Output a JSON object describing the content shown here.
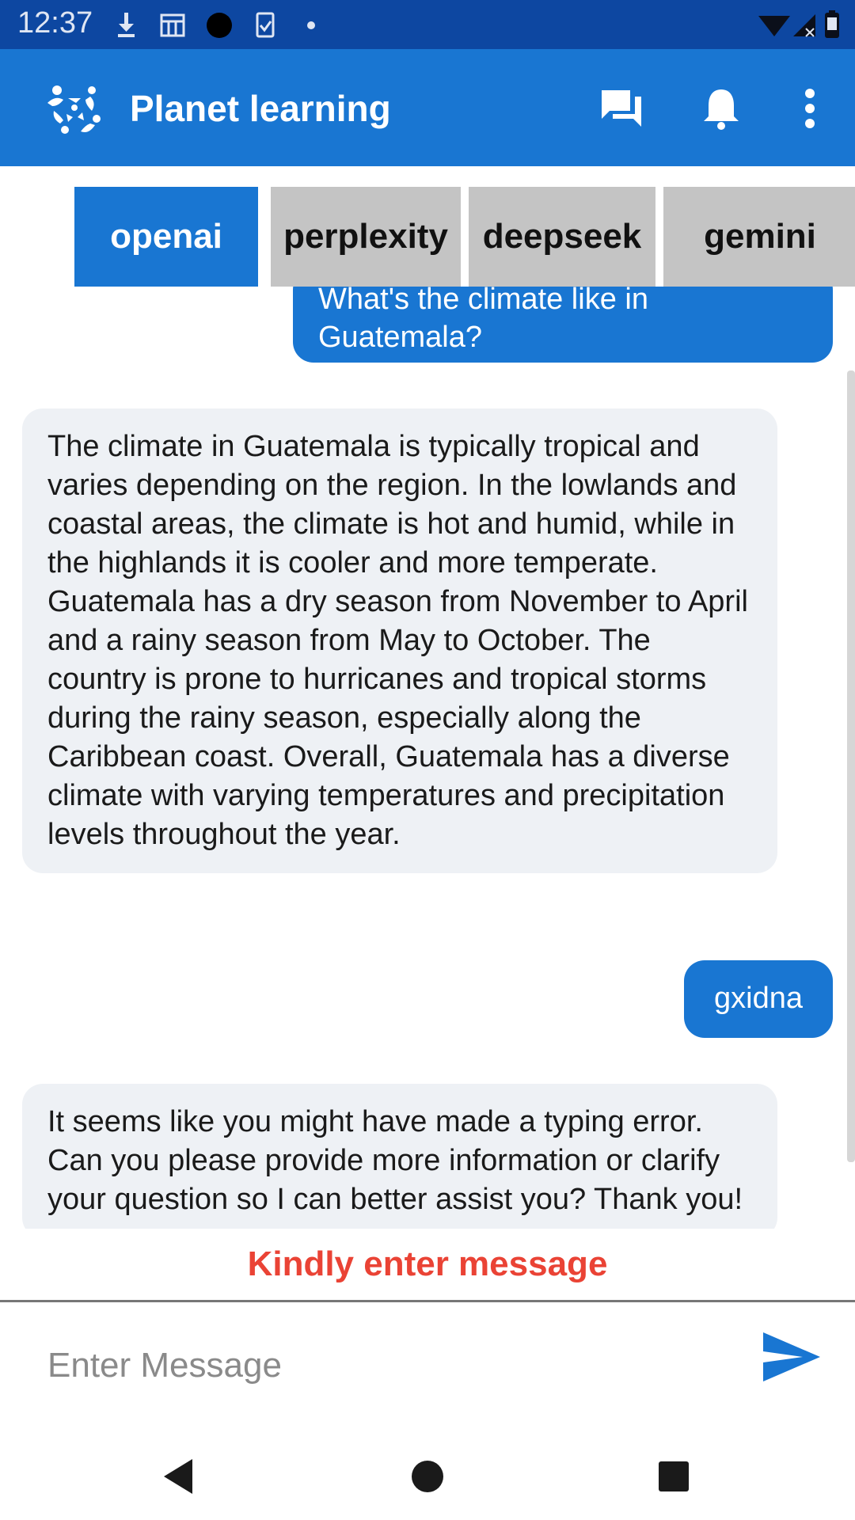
{
  "status_bar": {
    "time": "12:37",
    "left_icons": [
      "download-icon",
      "calendar-icon",
      "circle-icon",
      "clipboard-check-icon",
      "dot-icon"
    ],
    "right_icons": [
      "wifi-icon",
      "signal-icon",
      "battery-icon"
    ]
  },
  "app_bar": {
    "title": "Planet learning",
    "logo_icon": "people-circle-logo",
    "actions": [
      "chat-icon",
      "bell-icon",
      "more-vert-icon"
    ]
  },
  "tabs": [
    {
      "label": "openai",
      "active": true
    },
    {
      "label": "perplexity",
      "active": false
    },
    {
      "label": "deepseek",
      "active": false
    },
    {
      "label": "gemini",
      "active": false
    }
  ],
  "messages": [
    {
      "role": "user",
      "text_top_partial": "What's the climate like in",
      "text": "Guatemala?"
    },
    {
      "role": "bot",
      "text": "The climate in Guatemala is typically tropical and varies depending on the region. In the lowlands and coastal areas, the climate is hot and humid, while in the highlands it is cooler and more temperate. Guatemala has a dry season from November to April and a rainy season from May to October. The country is prone to hurricanes and tropical storms during the rainy season, especially along the Caribbean coast. Overall, Guatemala has a diverse climate with varying temperatures and precipitation levels throughout the year."
    },
    {
      "role": "user",
      "text": "gxidna"
    },
    {
      "role": "bot",
      "text": "It seems like you might have made a typing error. Can you please provide more information or clarify your question so I can better assist you? Thank you!"
    }
  ],
  "error_message": "Kindly enter message",
  "input": {
    "placeholder": "Enter Message",
    "value": ""
  },
  "colors": {
    "status_bar": "#0d47a1",
    "primary": "#1976d2",
    "tab_inactive": "#c4c4c4",
    "bot_bubble": "#eef1f5",
    "error": "#ea4335"
  },
  "nav_bar": [
    "back-icon",
    "home-icon",
    "recents-icon"
  ]
}
